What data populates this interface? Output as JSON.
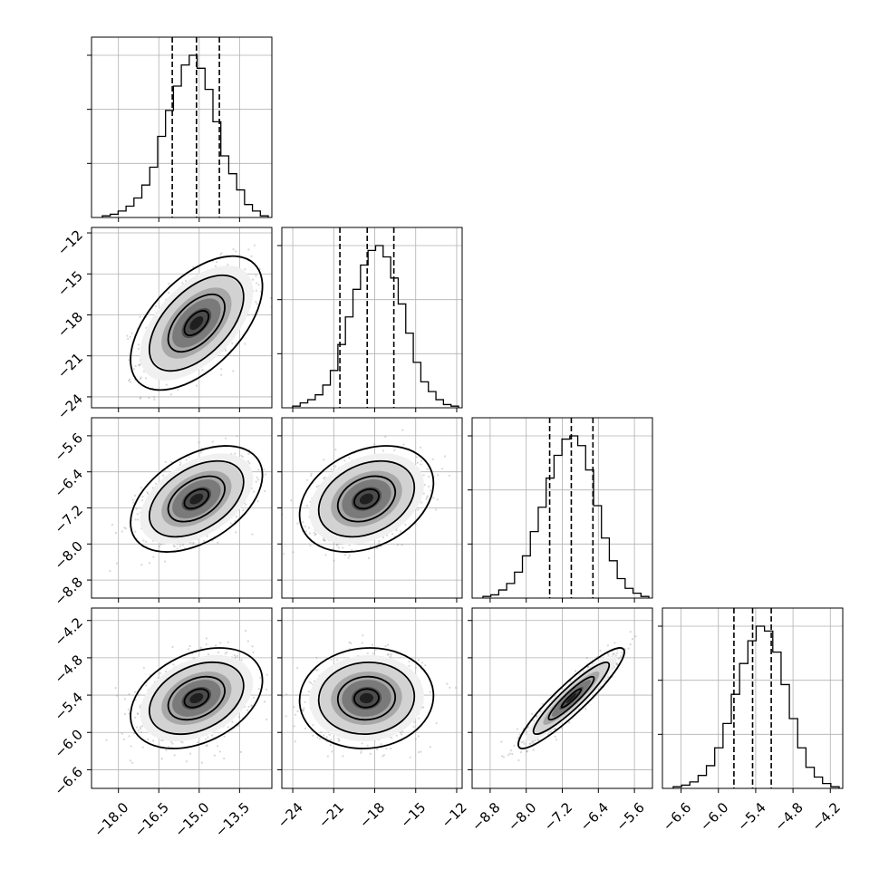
{
  "chart_data": {
    "type": "corner",
    "grid": true,
    "variables": [
      {
        "range": [
          -19.0,
          -12.3
        ],
        "ticks": [
          -18.0,
          -16.5,
          -15.0,
          -13.5
        ],
        "tick_labels": [
          "−18.0",
          "−16.5",
          "−15.0",
          "−13.5"
        ],
        "quantiles": [
          -16.0,
          -15.1,
          -14.25
        ],
        "hist": [
          0.01,
          0.02,
          0.04,
          0.07,
          0.12,
          0.2,
          0.31,
          0.5,
          0.66,
          0.81,
          0.94,
          1.0,
          0.92,
          0.79,
          0.59,
          0.38,
          0.27,
          0.17,
          0.08,
          0.04,
          0.01
        ]
      },
      {
        "range": [
          -24.8,
          -11.6
        ],
        "ticks": [
          -24,
          -21,
          -18,
          -15,
          -12
        ],
        "tick_labels": [
          "−24",
          "−21",
          "−18",
          "−15",
          "−12"
        ],
        "quantiles": [
          -20.55,
          -18.55,
          -16.6
        ],
        "hist": [
          0.01,
          0.03,
          0.05,
          0.08,
          0.14,
          0.23,
          0.39,
          0.56,
          0.73,
          0.88,
          0.97,
          1.0,
          0.93,
          0.8,
          0.64,
          0.46,
          0.28,
          0.16,
          0.1,
          0.05,
          0.02,
          0.01
        ]
      },
      {
        "range": [
          -9.2,
          -5.2
        ],
        "ticks": [
          -8.8,
          -8.0,
          -7.2,
          -6.4,
          -5.6
        ],
        "tick_labels": [
          "−8.8",
          "−8.0",
          "−7.2",
          "−6.4",
          "−5.6"
        ],
        "quantiles": [
          -7.48,
          -7.0,
          -6.52
        ],
        "hist": [
          0.01,
          0.02,
          0.05,
          0.09,
          0.16,
          0.26,
          0.41,
          0.56,
          0.74,
          0.88,
          0.98,
          1.0,
          0.94,
          0.79,
          0.57,
          0.37,
          0.23,
          0.12,
          0.06,
          0.03,
          0.01
        ]
      },
      {
        "range": [
          -6.9,
          -4.0
        ],
        "ticks": [
          -6.6,
          -6.0,
          -5.4,
          -4.8,
          -4.2
        ],
        "tick_labels": [
          "−6.6",
          "−6.0",
          "−5.4",
          "−4.8",
          "−4.2"
        ],
        "quantiles": [
          -5.75,
          -5.45,
          -5.15
        ],
        "hist": [
          0.01,
          0.02,
          0.04,
          0.08,
          0.14,
          0.25,
          0.4,
          0.58,
          0.77,
          0.91,
          1.0,
          0.97,
          0.84,
          0.64,
          0.43,
          0.25,
          0.13,
          0.07,
          0.03,
          0.01
        ]
      }
    ],
    "pairs": [
      {
        "row": 1,
        "col": 0,
        "mean": [
          -15.1,
          -18.6
        ],
        "sd": [
          1.0,
          2.0
        ],
        "rho": 0.55
      },
      {
        "row": 2,
        "col": 0,
        "mean": [
          -15.1,
          -7.0
        ],
        "sd": [
          1.0,
          0.48
        ],
        "rho": 0.45
      },
      {
        "row": 2,
        "col": 1,
        "mean": [
          -18.6,
          -7.0
        ],
        "sd": [
          2.0,
          0.48
        ],
        "rho": 0.3
      },
      {
        "row": 3,
        "col": 0,
        "mean": [
          -15.1,
          -5.45
        ],
        "sd": [
          1.0,
          0.33
        ],
        "rho": 0.35
      },
      {
        "row": 3,
        "col": 1,
        "mean": [
          -18.6,
          -5.45
        ],
        "sd": [
          2.0,
          0.33
        ],
        "rho": 0.05
      },
      {
        "row": 3,
        "col": 2,
        "mean": [
          -7.0,
          -5.45
        ],
        "sd": [
          0.48,
          0.33
        ],
        "rho": 0.92
      }
    ]
  }
}
